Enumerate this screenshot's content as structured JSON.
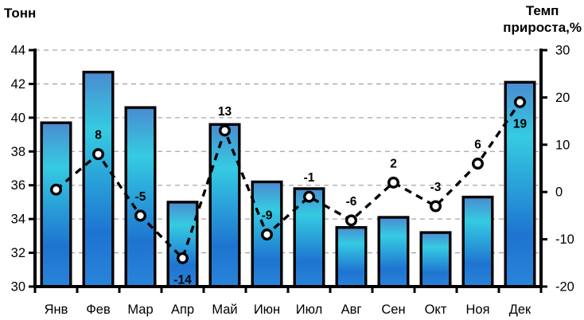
{
  "chart_data": {
    "type": "combo-bar-line",
    "left_axis": {
      "title": "Тонн",
      "min": 30,
      "max": 44,
      "step": 2,
      "ticks": [
        30,
        32,
        34,
        36,
        38,
        40,
        42,
        44
      ]
    },
    "right_axis": {
      "title": "Темп прироста,%",
      "title_lines": [
        "Темп",
        "прироста,%"
      ],
      "min": -20,
      "max": 30,
      "step": 10,
      "ticks": [
        -20,
        -10,
        0,
        10,
        20,
        30
      ]
    },
    "categories": [
      "Янв",
      "Фев",
      "Мар",
      "Апр",
      "Май",
      "Июн",
      "Июл",
      "Авг",
      "Сен",
      "Окт",
      "Ноя",
      "Дек"
    ],
    "series": [
      {
        "name": "Тонн",
        "chart": "bar",
        "axis": "left",
        "values": [
          39.7,
          42.7,
          40.6,
          35.0,
          39.6,
          36.2,
          35.8,
          33.5,
          34.1,
          33.2,
          35.3,
          42.1
        ]
      },
      {
        "name": "Темп прироста,%",
        "chart": "line",
        "axis": "right",
        "values": [
          0.5,
          8,
          -5,
          -14,
          13,
          -9,
          -1,
          -6,
          2,
          -3,
          6,
          19
        ],
        "labels": [
          "",
          "8",
          "-5",
          "-14",
          "13",
          "-9",
          "-1",
          "-6",
          "2",
          "-3",
          "6",
          "19"
        ],
        "label_pos": [
          "none",
          "above",
          "above",
          "below",
          "above",
          "above",
          "above",
          "above",
          "above",
          "above",
          "above",
          "below"
        ]
      }
    ],
    "grid": true,
    "legend": "none",
    "colors": {
      "background": "#FFFFFF",
      "axis": "#000000",
      "grid": "#A6A6A6",
      "text": "#000000",
      "bar_border": "#000000",
      "bar_gradient": [
        {
          "offset": "0%",
          "color": "#4A8BD0"
        },
        {
          "offset": "27%",
          "color": "#35CBE2"
        },
        {
          "offset": "75%",
          "color": "#1E74D0"
        },
        {
          "offset": "100%",
          "color": "#2A84DA"
        }
      ],
      "line": "#000000",
      "marker_fill": "#FFFFFF",
      "marker_border": "#000000"
    }
  }
}
